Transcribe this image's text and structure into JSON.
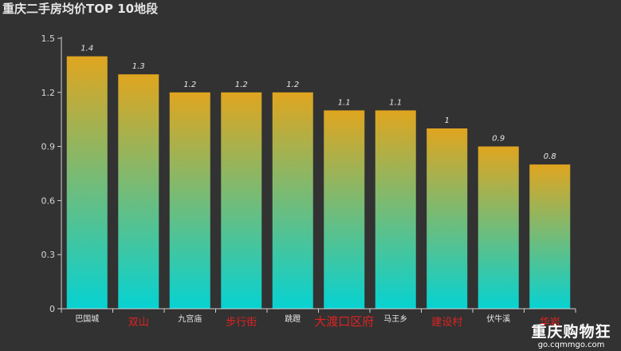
{
  "chart_data": {
    "type": "bar",
    "title": "重庆二手房均价TOP 10地段",
    "categories": [
      "巴国城",
      "双山",
      "九宫庙",
      "步行街",
      "跳蹬",
      "大渡口区府",
      "马王乡",
      "建设村",
      "伏牛溪",
      "华岩"
    ],
    "values": [
      1.4,
      1.3,
      1.2,
      1.2,
      1.2,
      1.1,
      1.1,
      1,
      0.9,
      0.8
    ],
    "data_labels": [
      "1.4",
      "1.3",
      "1.2",
      "1.2",
      "1.2",
      "1.1",
      "1.1",
      "1",
      "0.9",
      "0.8"
    ],
    "ylim": [
      0,
      1.5
    ],
    "yticks": [
      0,
      0.3,
      0.6,
      0.9,
      1.2,
      1.5
    ],
    "ytick_labels": [
      "0",
      "0.3",
      "0.6",
      "0.9",
      "1.2",
      "1.5"
    ],
    "xlabel": "",
    "ylabel": "",
    "grid": false,
    "bar_gradient": {
      "top": "#e0a51f",
      "bottom": "#06d2d2"
    },
    "tick_label_colors": [
      "#e6e6e6",
      "#e02222",
      "#e6e6e6",
      "#e02222",
      "#e6e6e6",
      "#e02222",
      "#e6e6e6",
      "#e02222",
      "#e6e6e6",
      "#e02222"
    ],
    "highlighted_tick_style": "large-red"
  },
  "watermark": {
    "main": "重庆购物狂",
    "sub": "go.cqmmgo.com"
  }
}
